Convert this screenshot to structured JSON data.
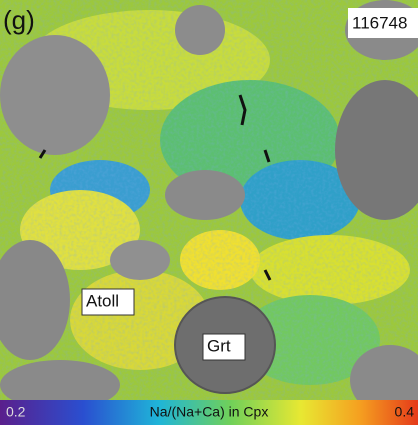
{
  "panel_label": "(g)",
  "sample_id": "116748",
  "labels": [
    "Atoll",
    "Grt"
  ],
  "colorbar": {
    "min": 0.2,
    "title": "Na/(Na+Ca) in Cpx",
    "max": 0.4
  }
}
